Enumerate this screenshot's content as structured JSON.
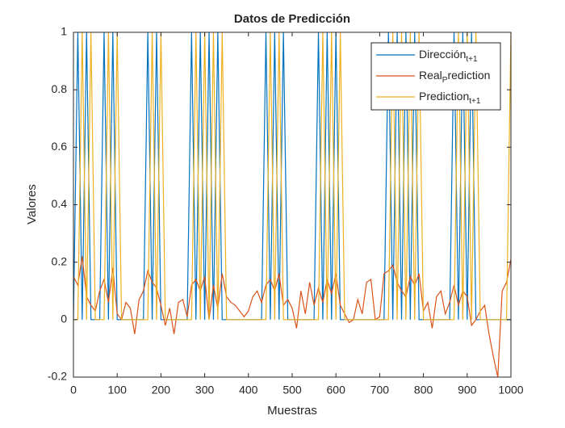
{
  "chart_data": {
    "type": "line",
    "title": "Datos de Predicción",
    "xlabel": "Muestras",
    "ylabel": "Valores",
    "xlim": [
      0,
      1000
    ],
    "ylim": [
      -0.2,
      1
    ],
    "xticks": [
      0,
      100,
      200,
      300,
      400,
      500,
      600,
      700,
      800,
      900,
      1000
    ],
    "yticks": [
      -0.2,
      0,
      0.2,
      0.4,
      0.6,
      0.8,
      1
    ],
    "legend_position": "northeast",
    "x": [
      0,
      10,
      20,
      30,
      40,
      50,
      60,
      70,
      80,
      90,
      100,
      110,
      120,
      130,
      140,
      150,
      160,
      170,
      180,
      190,
      200,
      210,
      220,
      230,
      240,
      250,
      260,
      270,
      280,
      290,
      300,
      310,
      320,
      330,
      340,
      350,
      360,
      370,
      380,
      390,
      400,
      410,
      420,
      430,
      440,
      450,
      460,
      470,
      480,
      490,
      500,
      510,
      520,
      530,
      540,
      550,
      560,
      570,
      580,
      590,
      600,
      610,
      620,
      630,
      640,
      650,
      660,
      670,
      680,
      690,
      700,
      710,
      720,
      730,
      740,
      750,
      760,
      770,
      780,
      790,
      800,
      810,
      820,
      830,
      840,
      850,
      860,
      870,
      880,
      890,
      900,
      910,
      920,
      930,
      940,
      950,
      960,
      970,
      980,
      990,
      1000
    ],
    "series": [
      {
        "legend_label": [
          {
            "text": "Dirección"
          },
          {
            "text": "t+1",
            "sub": true
          }
        ],
        "color": "#0072BD",
        "values": [
          0,
          1,
          0,
          1,
          0,
          0,
          0,
          1,
          0,
          1,
          0,
          0,
          0,
          0,
          0,
          0,
          0,
          1,
          0,
          1,
          0,
          0,
          0,
          0,
          0,
          0,
          0,
          1,
          0,
          1,
          0,
          1,
          0,
          1,
          0,
          0,
          0,
          0,
          0,
          0,
          0,
          0,
          0,
          0,
          1,
          0,
          1,
          0,
          1,
          0,
          0,
          0,
          0,
          0,
          0,
          0,
          1,
          0,
          1,
          0,
          1,
          0,
          0,
          0,
          0,
          0,
          0,
          0,
          0,
          0,
          0,
          0,
          1,
          0,
          1,
          0,
          1,
          0,
          1,
          0,
          0,
          0,
          0,
          0,
          0,
          0,
          0,
          1,
          0,
          1,
          0,
          1,
          0,
          0,
          0,
          0,
          0,
          0,
          0,
          0,
          0
        ]
      },
      {
        "legend_label": [
          {
            "text": "Real"
          },
          {
            "text": "P",
            "sub": true
          },
          {
            "text": "rediction"
          }
        ],
        "color": "#D95319",
        "values": [
          0.15,
          0.12,
          0.22,
          0.08,
          0.05,
          0.03,
          0.1,
          0.14,
          0.06,
          0.18,
          0.02,
          0.0,
          0.06,
          0.04,
          -0.05,
          0.07,
          0.1,
          0.17,
          0.13,
          0.11,
          0.05,
          -0.02,
          0.04,
          -0.05,
          0.06,
          0.07,
          0.01,
          0.12,
          0.14,
          0.1,
          0.15,
          0.0,
          0.12,
          0.04,
          0.16,
          0.08,
          0.06,
          0.05,
          0.03,
          0.01,
          0.03,
          0.08,
          0.1,
          0.06,
          0.12,
          0.14,
          0.1,
          0.16,
          0.05,
          0.07,
          0.04,
          -0.03,
          0.1,
          0.02,
          0.13,
          0.05,
          0.11,
          0.06,
          0.14,
          0.09,
          0.16,
          0.05,
          0.02,
          -0.01,
          0.0,
          0.07,
          0.02,
          0.13,
          0.14,
          0.0,
          0.01,
          0.16,
          0.17,
          0.19,
          0.13,
          0.1,
          0.08,
          0.15,
          0.12,
          0.16,
          0.03,
          0.06,
          -0.03,
          0.08,
          0.1,
          0.02,
          0.06,
          0.12,
          0.05,
          0.1,
          0.08,
          -0.02,
          0.0,
          0.03,
          0.05,
          -0.05,
          -0.13,
          -0.2,
          0.1,
          0.13,
          0.21
        ]
      },
      {
        "legend_label": [
          {
            "text": "Prediction"
          },
          {
            "text": "t+1",
            "sub": true
          }
        ],
        "color": "#EDB120",
        "values": [
          0,
          0,
          1,
          0,
          1,
          0,
          0,
          0,
          1,
          0,
          1,
          0,
          0,
          0,
          0,
          0,
          0,
          0,
          1,
          0,
          1,
          0,
          0,
          0,
          0,
          0,
          0,
          0,
          1,
          0,
          1,
          0,
          1,
          0,
          1,
          0,
          0,
          0,
          0,
          0,
          0,
          0,
          0,
          0,
          0,
          1,
          0,
          1,
          0,
          0,
          0,
          0,
          0,
          0,
          0,
          0,
          0,
          1,
          0,
          1,
          0,
          1,
          0,
          0,
          0,
          0,
          0,
          0,
          0,
          0,
          0,
          0,
          0,
          1,
          0,
          1,
          0,
          1,
          0,
          1,
          0,
          0,
          0,
          0,
          0,
          0,
          0,
          0,
          1,
          0,
          1,
          0,
          1,
          0,
          0,
          0,
          0,
          0,
          0,
          0,
          1
        ]
      }
    ]
  }
}
